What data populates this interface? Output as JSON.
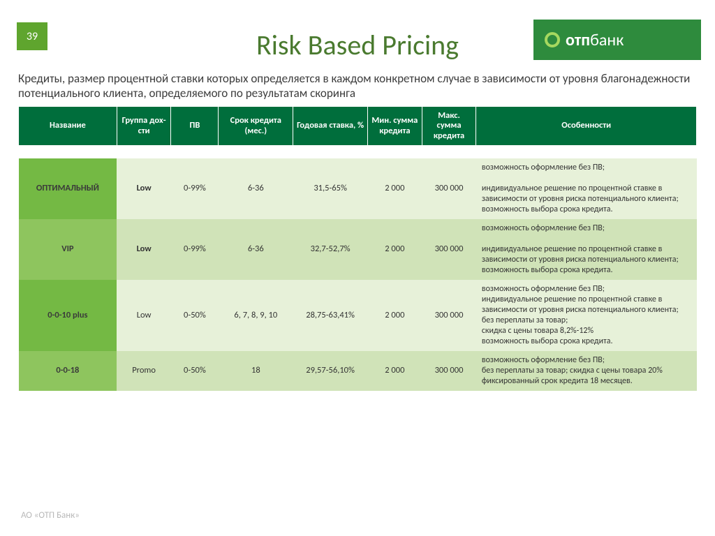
{
  "page_number": "39",
  "title": "Risk Based Pricing",
  "logo": {
    "bold": "отп",
    "light": "банк"
  },
  "subtitle": "Кредиты, размер процентной ставки которых определяется в каждом конкретном случае в зависимости от уровня благонадежности потенциального клиента, определяемого по результатам скоринга",
  "footer": "АО «ОТП Банк»",
  "colors": {
    "header_bg": "#006e3c",
    "name_bg_a": "#74b944",
    "name_bg_b": "#8ec55e",
    "row_bg_a": "#e7f1d9",
    "row_bg_b": "#d0e3b8",
    "brand_green": "#2e8b3d",
    "title_color": "#4a7a2f"
  },
  "table": {
    "headers": [
      "Название",
      "Группа дох-сти",
      "ПВ",
      "Срок кредита (мес.)",
      "Годовая ставка, %",
      "Мин. сумма кредита",
      "Макс. сумма кредита",
      "Особенности"
    ],
    "rows": [
      {
        "name": "ОПТИМАЛЬНЫЙ",
        "group": "Low",
        "group_bold": true,
        "pv": "0-99%",
        "term": "6-36",
        "rate": "31,5-65%",
        "min": "2 000",
        "max": "300 000",
        "features": "возможность оформление без ПВ;\n\n          индивидуальное решение по процентной ставке в зависимости от уровня риска потенциального клиента;\n          возможность выбора срока кредита."
      },
      {
        "name": "VIP",
        "group": "Low",
        "group_bold": true,
        "pv": "0-99%",
        "term": "6-36",
        "rate": "32,7-52,7%",
        "min": "2 000",
        "max": "300 000",
        "features": "возможность оформление без ПВ;\n\n          индивидуальное решение по процентной ставке в зависимости от уровня риска потенциального клиента;\nвозможность выбора срока кредита."
      },
      {
        "name": "0-0-10 plus",
        "group": "Low",
        "group_bold": false,
        "pv": "0-50%",
        "term": "6, 7, 8, 9, 10",
        "rate": "28,75-63,41%",
        "min": "2 000",
        "max": "300 000",
        "features": "возможность оформление без ПВ;\n индивидуальное решение по процентной ставке в зависимости от уровня риска потенциального клиента;\nбез переплаты за товар;\nскидка с цены товара 8,2%-12%\nвозможность выбора срока кредита."
      },
      {
        "name": "0-0-18",
        "group": "Promo",
        "group_bold": false,
        "pv": "0-50%",
        "term": "18",
        "rate": "29,57-56,10%",
        "min": "2 000",
        "max": "300 000",
        "features": "возможность оформление без ПВ;\nбез переплаты за  товар; скидка с цены товара 20%\nфиксированный срок кредита 18 месяцев."
      }
    ]
  }
}
